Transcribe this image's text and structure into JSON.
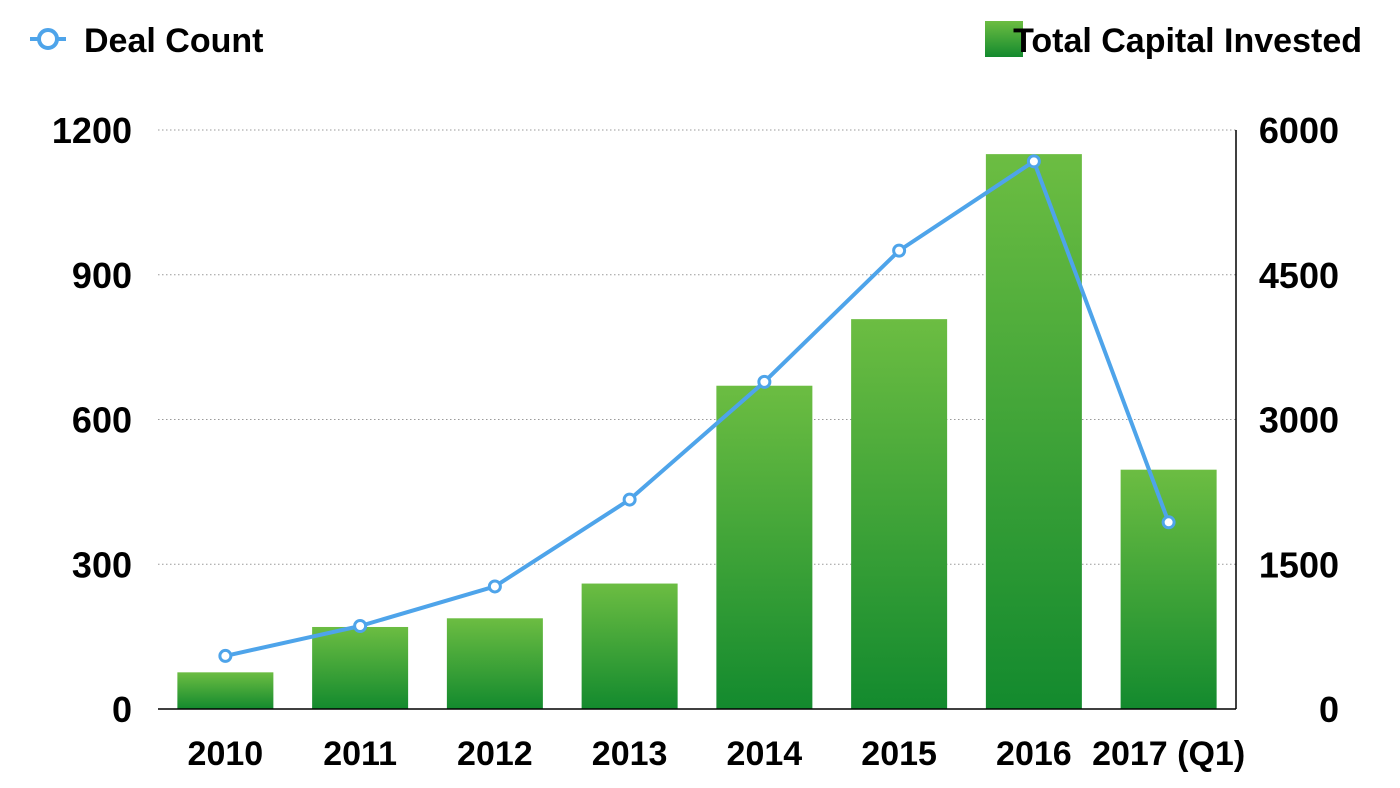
{
  "chart_data": {
    "type": "bar",
    "categories": [
      "2010",
      "2011",
      "2012",
      "2013",
      "2014",
      "2015",
      "2016",
      "2017 (Q1)"
    ],
    "series": [
      {
        "name": "Total Capital Invested",
        "type": "bar",
        "axis": "right",
        "color": "#1f9e36",
        "values": [
          380,
          850,
          940,
          1300,
          3350,
          4040,
          5750,
          2480
        ]
      },
      {
        "name": "Deal Count",
        "type": "line",
        "axis": "left",
        "color": "#4ea4ea",
        "values": [
          110,
          172,
          254,
          434,
          678,
          950,
          1135,
          387
        ]
      }
    ],
    "y_left": {
      "min": 0,
      "max": 1200,
      "ticks": [
        0,
        300,
        600,
        900,
        1200
      ]
    },
    "y_right": {
      "min": 0,
      "max": 6000,
      "ticks": [
        0,
        1500,
        3000,
        4500,
        6000
      ]
    },
    "grid": true,
    "legend": {
      "left_entry": "Deal Count",
      "right_entry": "Total Capital Invested",
      "placement": "top"
    }
  }
}
